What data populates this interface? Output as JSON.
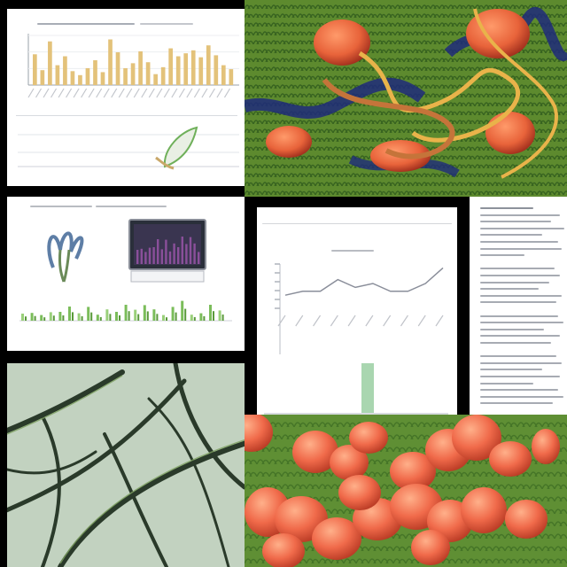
{
  "collage": {
    "tiles": [
      {
        "id": "top-left",
        "kind": "chart-document"
      },
      {
        "id": "top-right",
        "kind": "illustration",
        "subject": "orange-fruits-with-vines"
      },
      {
        "id": "middle-left",
        "kind": "document-with-monitor-and-plant-icon"
      },
      {
        "id": "middle-center",
        "kind": "line-chart-document"
      },
      {
        "id": "middle-right",
        "kind": "text-document"
      },
      {
        "id": "bottom-left",
        "kind": "illustration",
        "subject": "leaf-veins-closeup"
      },
      {
        "id": "bottom-right",
        "kind": "illustration",
        "subject": "orange-fruits-on-green"
      }
    ]
  },
  "chart_data": [
    {
      "type": "bar",
      "values": [
        62,
        30,
        88,
        40,
        58,
        28,
        20,
        34,
        50,
        26,
        92,
        66,
        34,
        44,
        68,
        46,
        22,
        36,
        74,
        58,
        64,
        70,
        56,
        80,
        60,
        40,
        32
      ],
      "grid": true
    },
    {
      "type": "line",
      "values": [
        20,
        24,
        12,
        28,
        30,
        60,
        22,
        58,
        14,
        44,
        30,
        70,
        42,
        68,
        44,
        12,
        58,
        92,
        14,
        22,
        70,
        38
      ],
      "grid": true
    },
    {
      "type": "line",
      "values": [
        2,
        3,
        3,
        6,
        4,
        5,
        3,
        3,
        5,
        9
      ]
    }
  ],
  "colors": {
    "bars": "#e3c27a",
    "line": "#8a8e9a",
    "foliage": "#4f7f2a",
    "fruit": "#e8633a",
    "vein": "#2a3a2a",
    "leaf_bg": "#b9ccb8"
  }
}
